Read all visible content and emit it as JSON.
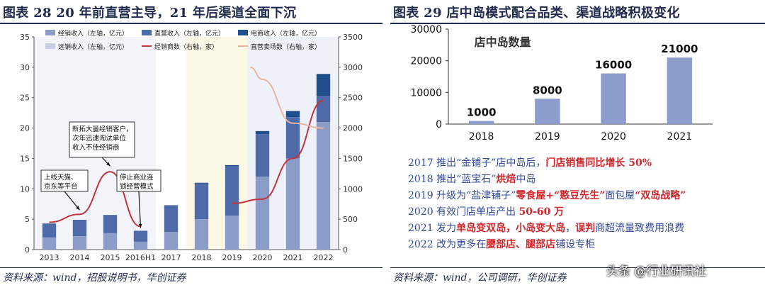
{
  "left": {
    "title": "图表 28  20 年前直营主导，21 年后渠道全面下沉",
    "source": "资料来源：wind，招股说明书，华创证券"
  },
  "right": {
    "title": "图表 29  店中岛模式配合品类、渠道战略积极变化",
    "source": "资料来源：wind，公司调研，华创证券"
  },
  "watermark": "头条 @行业研讯社",
  "notes": [
    [
      {
        "t": "2017 推出“金铺子”店中岛后，"
      },
      {
        "t": "门店销售同比增长 50%",
        "hl": true
      }
    ],
    [
      {
        "t": "2018 推出“蓝宝石”"
      },
      {
        "t": "烘焙",
        "hl": true
      },
      {
        "t": "中岛"
      }
    ],
    [
      {
        "t": "2019 升级为“盐津铺子”"
      },
      {
        "t": "零食屋+“憨豆先生”",
        "hl": true
      },
      {
        "t": "面包屋"
      },
      {
        "t": "“双岛战略”",
        "hl": true
      }
    ],
    [
      {
        "t": "2020 有效门店单店产出 "
      },
      {
        "t": "50-60 万",
        "hl": true
      }
    ],
    [
      {
        "t": "2021 发力"
      },
      {
        "t": "单岛变双岛，小岛变大岛",
        "hl": true
      },
      {
        "t": "，"
      },
      {
        "t": "误判",
        "hl": true
      },
      {
        "t": "商超流量致费用浪费"
      }
    ],
    [
      {
        "t": "2022 改为更多在"
      },
      {
        "t": "腰部店、腿部店",
        "hl": true
      },
      {
        "t": "铺设专柜"
      }
    ]
  ],
  "chart_data": [
    {
      "type": "bar",
      "stacked": true,
      "categories": [
        "2013",
        "2014",
        "2015",
        "2016H1",
        "2017",
        "2018",
        "2019",
        "2020",
        "2021",
        "2022"
      ],
      "series": [
        {
          "name": "经销收入（左轴，亿元）",
          "color": "#8c9cc8",
          "values": [
            2.0,
            2.2,
            2.7,
            1.3,
            2.9,
            5.0,
            5.6,
            12.0,
            15.0,
            21.0
          ],
          "axis": "left"
        },
        {
          "name": "直营收入（左轴，亿元）",
          "color": "#4f6aa8",
          "values": [
            2.3,
            2.7,
            3.0,
            1.8,
            4.3,
            5.9,
            8.1,
            7.0,
            6.8,
            4.3
          ],
          "axis": "left"
        },
        {
          "name": "电商收入（左轴，亿元）",
          "color": "#1f4e8c",
          "values": [
            0.0,
            0.0,
            0.0,
            0.0,
            0.1,
            0.1,
            0.2,
            0.5,
            1.0,
            3.6
          ],
          "axis": "left"
        },
        {
          "name": "远销收入（左轴，亿元）",
          "color": "#c7d0e8",
          "values": [
            0.0,
            0.0,
            0.0,
            0.0,
            0.0,
            0.0,
            0.0,
            0.0,
            0.0,
            0.0
          ],
          "axis": "left"
        }
      ],
      "lines": [
        {
          "name": "经销商数（右轴，家）",
          "color": "#c0343c",
          "x": [
            0,
            1,
            2,
            3
          ],
          "values": [
            450,
            580,
            1280,
            380
          ],
          "axis": "right"
        },
        {
          "name": "经销商数（右轴，家）",
          "color": "#c0343c",
          "x": [
            6,
            7,
            8,
            9
          ],
          "values": [
            760,
            830,
            1500,
            2450
          ],
          "axis": "right"
        },
        {
          "name": "直营卖场数（右轴，家）",
          "color": "#e8b4a0",
          "x": [
            6.6,
            7,
            8,
            9
          ],
          "values": [
            3000,
            2800,
            2080,
            2000
          ],
          "axis": "right"
        }
      ],
      "ylim_left": [
        0,
        35
      ],
      "ylim_right": [
        0,
        3500
      ],
      "yticks_left": [
        "0",
        "5",
        "10",
        "15",
        "20",
        "25",
        "30",
        "35"
      ],
      "yticks_right": [
        "0",
        "500",
        "1000",
        "1500",
        "2000",
        "2500",
        "3000",
        "3500"
      ],
      "legend": [
        "经销收入（左轴，亿元）",
        "直营收入（左轴，亿元）",
        "电商收入（左轴，亿元）",
        "远销收入（左轴，亿元）",
        "经销商数（右轴，家）",
        "直营卖场数（右轴，家）"
      ],
      "shading": [
        {
          "from": -0.5,
          "to": 3.5,
          "color": "#f3f4fa"
        },
        {
          "from": 4.5,
          "to": 6.5,
          "color": "#fcf8e6"
        },
        {
          "from": 6.5,
          "to": 9.5,
          "color": "#eef1f8"
        }
      ],
      "annotations": [
        {
          "text": "新拓大量经销客户，次年迅速淘汰单位收入不佳经销商",
          "lines": [
            "新拓大量经销客户，",
            "次年迅速淘汰单位",
            "收入不佳经销商"
          ],
          "arrow_to_x": 2
        },
        {
          "text": "上线天猫、京东等平台",
          "lines": [
            "上线天猫、",
            "京东等平台"
          ],
          "arrow_to_x": 1
        },
        {
          "text": "停止商业连锁经营模式",
          "lines": [
            "停止商业连",
            "锁经营模式"
          ],
          "arrow_to_x": 3
        }
      ]
    },
    {
      "type": "bar",
      "title": "店中岛数量",
      "categories": [
        "2018",
        "2019",
        "2020",
        "2021"
      ],
      "values": [
        1000,
        8000,
        16000,
        21000
      ],
      "data_labels": [
        "1000",
        "8000",
        "16000",
        "21000"
      ],
      "ylim": [
        0,
        30000
      ],
      "yticks": [
        "0",
        "10000",
        "20000",
        "30000"
      ],
      "color": "#8c9ccc"
    }
  ]
}
